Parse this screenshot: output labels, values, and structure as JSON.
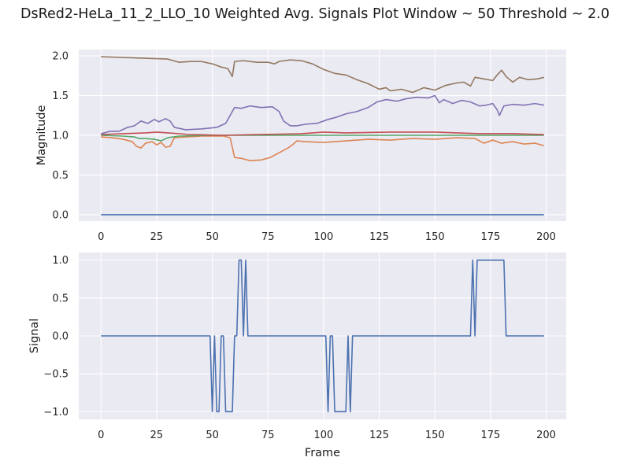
{
  "figure": {
    "title": "DsRed2-HeLa_11_2_LLO_10 Weighted Avg. Signals Plot Window ~ 50 Threshold ~ 2.0"
  },
  "colors": {
    "background": "#eaeaf2",
    "grid": "#ffffff",
    "series": [
      "#4c72b0",
      "#dd8452",
      "#55a868",
      "#c44e52",
      "#8172b3",
      "#937860"
    ]
  },
  "chart_data": [
    {
      "type": "line",
      "title": "",
      "xlabel": "",
      "ylabel": "Magnitude",
      "xlim": [
        -10,
        209
      ],
      "ylim": [
        -0.08,
        2.08
      ],
      "grid": true,
      "xticks": [
        0,
        25,
        50,
        75,
        100,
        125,
        150,
        175,
        200
      ],
      "xtick_labels": [
        "0",
        "25",
        "50",
        "75",
        "100",
        "125",
        "150",
        "175",
        "200"
      ],
      "yticks": [
        0.0,
        0.5,
        1.0,
        1.5,
        2.0
      ],
      "ytick_labels": [
        "0.0",
        "0.5",
        "1.0",
        "1.5",
        "2.0"
      ],
      "series": [
        {
          "points": [
            [
              0,
              0.0
            ],
            [
              199,
              0.0
            ]
          ]
        },
        {
          "points": [
            [
              0,
              0.98
            ],
            [
              5,
              0.97
            ],
            [
              10,
              0.95
            ],
            [
              14,
              0.92
            ],
            [
              16,
              0.86
            ],
            [
              18,
              0.84
            ],
            [
              20,
              0.9
            ],
            [
              23,
              0.92
            ],
            [
              25,
              0.88
            ],
            [
              27,
              0.91
            ],
            [
              29,
              0.85
            ],
            [
              31,
              0.86
            ],
            [
              33,
              0.97
            ],
            [
              38,
              0.98
            ],
            [
              45,
              0.99
            ],
            [
              55,
              0.99
            ],
            [
              58,
              0.97
            ],
            [
              59,
              0.85
            ],
            [
              60,
              0.72
            ],
            [
              63,
              0.71
            ],
            [
              67,
              0.68
            ],
            [
              72,
              0.69
            ],
            [
              76,
              0.72
            ],
            [
              80,
              0.78
            ],
            [
              84,
              0.84
            ],
            [
              86,
              0.88
            ],
            [
              88,
              0.93
            ],
            [
              92,
              0.92
            ],
            [
              100,
              0.91
            ],
            [
              110,
              0.93
            ],
            [
              120,
              0.95
            ],
            [
              130,
              0.94
            ],
            [
              140,
              0.96
            ],
            [
              150,
              0.95
            ],
            [
              160,
              0.97
            ],
            [
              168,
              0.96
            ],
            [
              172,
              0.9
            ],
            [
              176,
              0.94
            ],
            [
              180,
              0.9
            ],
            [
              185,
              0.92
            ],
            [
              190,
              0.89
            ],
            [
              195,
              0.9
            ],
            [
              199,
              0.87
            ]
          ]
        },
        {
          "points": [
            [
              0,
              1.0
            ],
            [
              10,
              0.99
            ],
            [
              15,
              0.98
            ],
            [
              17,
              0.96
            ],
            [
              20,
              0.96
            ],
            [
              24,
              0.95
            ],
            [
              27,
              0.93
            ],
            [
              30,
              0.97
            ],
            [
              35,
              0.99
            ],
            [
              50,
              1.0
            ],
            [
              100,
              1.0
            ],
            [
              150,
              1.0
            ],
            [
              199,
              1.0
            ]
          ]
        },
        {
          "points": [
            [
              0,
              1.01
            ],
            [
              10,
              1.02
            ],
            [
              20,
              1.03
            ],
            [
              25,
              1.04
            ],
            [
              30,
              1.03
            ],
            [
              40,
              1.01
            ],
            [
              55,
              1.0
            ],
            [
              70,
              1.01
            ],
            [
              90,
              1.02
            ],
            [
              100,
              1.04
            ],
            [
              110,
              1.03
            ],
            [
              130,
              1.04
            ],
            [
              150,
              1.04
            ],
            [
              170,
              1.02
            ],
            [
              185,
              1.02
            ],
            [
              199,
              1.01
            ]
          ]
        },
        {
          "points": [
            [
              0,
              1.02
            ],
            [
              4,
              1.05
            ],
            [
              8,
              1.05
            ],
            [
              12,
              1.1
            ],
            [
              15,
              1.12
            ],
            [
              18,
              1.18
            ],
            [
              21,
              1.15
            ],
            [
              24,
              1.2
            ],
            [
              26,
              1.17
            ],
            [
              29,
              1.21
            ],
            [
              31,
              1.18
            ],
            [
              33,
              1.1
            ],
            [
              38,
              1.07
            ],
            [
              45,
              1.08
            ],
            [
              52,
              1.1
            ],
            [
              56,
              1.15
            ],
            [
              58,
              1.25
            ],
            [
              60,
              1.35
            ],
            [
              63,
              1.34
            ],
            [
              67,
              1.37
            ],
            [
              72,
              1.35
            ],
            [
              77,
              1.36
            ],
            [
              80,
              1.3
            ],
            [
              82,
              1.18
            ],
            [
              85,
              1.12
            ],
            [
              88,
              1.12
            ],
            [
              92,
              1.14
            ],
            [
              97,
              1.15
            ],
            [
              102,
              1.2
            ],
            [
              106,
              1.23
            ],
            [
              110,
              1.27
            ],
            [
              115,
              1.3
            ],
            [
              120,
              1.35
            ],
            [
              124,
              1.42
            ],
            [
              128,
              1.45
            ],
            [
              133,
              1.43
            ],
            [
              137,
              1.46
            ],
            [
              142,
              1.48
            ],
            [
              147,
              1.47
            ],
            [
              150,
              1.5
            ],
            [
              152,
              1.41
            ],
            [
              154,
              1.45
            ],
            [
              158,
              1.4
            ],
            [
              162,
              1.44
            ],
            [
              166,
              1.42
            ],
            [
              170,
              1.37
            ],
            [
              173,
              1.38
            ],
            [
              176,
              1.4
            ],
            [
              178,
              1.32
            ],
            [
              179,
              1.25
            ],
            [
              181,
              1.37
            ],
            [
              185,
              1.39
            ],
            [
              190,
              1.38
            ],
            [
              195,
              1.4
            ],
            [
              199,
              1.38
            ]
          ]
        },
        {
          "points": [
            [
              0,
              1.99
            ],
            [
              10,
              1.98
            ],
            [
              20,
              1.97
            ],
            [
              30,
              1.96
            ],
            [
              35,
              1.92
            ],
            [
              40,
              1.93
            ],
            [
              45,
              1.93
            ],
            [
              50,
              1.9
            ],
            [
              54,
              1.86
            ],
            [
              57,
              1.84
            ],
            [
              58,
              1.79
            ],
            [
              59,
              1.74
            ],
            [
              60,
              1.93
            ],
            [
              64,
              1.94
            ],
            [
              70,
              1.92
            ],
            [
              75,
              1.92
            ],
            [
              78,
              1.9
            ],
            [
              80,
              1.93
            ],
            [
              85,
              1.95
            ],
            [
              90,
              1.94
            ],
            [
              95,
              1.9
            ],
            [
              100,
              1.83
            ],
            [
              105,
              1.78
            ],
            [
              110,
              1.76
            ],
            [
              115,
              1.7
            ],
            [
              120,
              1.65
            ],
            [
              125,
              1.58
            ],
            [
              128,
              1.6
            ],
            [
              130,
              1.56
            ],
            [
              135,
              1.58
            ],
            [
              140,
              1.54
            ],
            [
              145,
              1.6
            ],
            [
              150,
              1.57
            ],
            [
              155,
              1.63
            ],
            [
              160,
              1.66
            ],
            [
              163,
              1.67
            ],
            [
              166,
              1.62
            ],
            [
              168,
              1.73
            ],
            [
              172,
              1.71
            ],
            [
              176,
              1.69
            ],
            [
              178,
              1.76
            ],
            [
              180,
              1.82
            ],
            [
              182,
              1.74
            ],
            [
              185,
              1.67
            ],
            [
              188,
              1.73
            ],
            [
              192,
              1.7
            ],
            [
              196,
              1.71
            ],
            [
              199,
              1.73
            ]
          ]
        }
      ]
    },
    {
      "type": "line",
      "title": "",
      "xlabel": "Frame",
      "ylabel": "Signal",
      "xlim": [
        -10,
        209
      ],
      "ylim": [
        -1.1,
        1.1
      ],
      "grid": true,
      "xticks": [
        0,
        25,
        50,
        75,
        100,
        125,
        150,
        175,
        200
      ],
      "xtick_labels": [
        "0",
        "25",
        "50",
        "75",
        "100",
        "125",
        "150",
        "175",
        "200"
      ],
      "yticks": [
        -1.0,
        -0.5,
        0.0,
        0.5,
        1.0
      ],
      "ytick_labels": [
        "−1.0",
        "−0.5",
        "0.0",
        "0.5",
        "1.0"
      ],
      "series": [
        {
          "points": [
            [
              0,
              0
            ],
            [
              49,
              0
            ],
            [
              50,
              -1
            ],
            [
              51,
              0
            ],
            [
              52,
              -1
            ],
            [
              53,
              -1
            ],
            [
              54,
              0
            ],
            [
              55,
              0
            ],
            [
              56,
              -1
            ],
            [
              59,
              -1
            ],
            [
              60,
              0
            ],
            [
              61,
              0
            ],
            [
              62,
              1
            ],
            [
              63,
              1
            ],
            [
              64,
              0
            ],
            [
              65,
              1
            ],
            [
              66,
              0
            ],
            [
              101,
              0
            ],
            [
              102,
              -1
            ],
            [
              103,
              0
            ],
            [
              104,
              0
            ],
            [
              105,
              -1
            ],
            [
              110,
              -1
            ],
            [
              111,
              0
            ],
            [
              112,
              -1
            ],
            [
              113,
              0
            ],
            [
              166,
              0
            ],
            [
              167,
              1
            ],
            [
              168,
              0
            ],
            [
              169,
              1
            ],
            [
              181,
              1
            ],
            [
              182,
              0
            ],
            [
              199,
              0
            ]
          ]
        }
      ]
    }
  ]
}
